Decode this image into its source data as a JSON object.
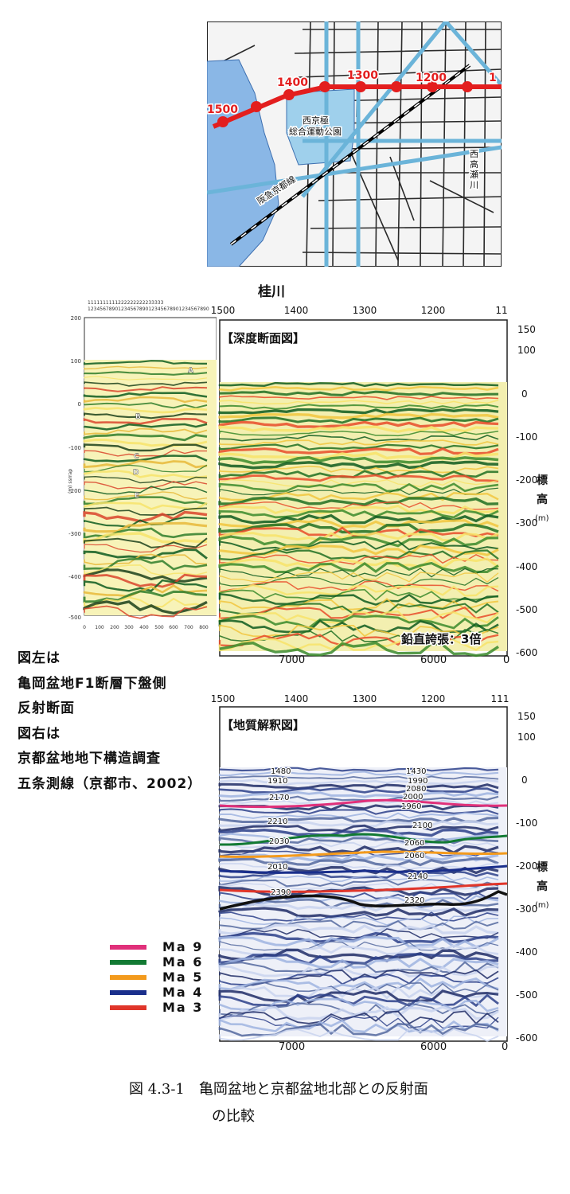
{
  "map": {
    "line_labels": [
      "1500",
      "1400",
      "1300",
      "1200",
      "1"
    ],
    "place_labels": {
      "park": [
        "西京極",
        "総合運動公園"
      ],
      "railway": "阪急京都線",
      "river": "西高瀬川"
    }
  },
  "seismic_left": {
    "top_tick_digits": "1234567890123456789012345678901234567890",
    "y_ticks": [
      "200",
      "100",
      "0",
      "-100",
      "-200",
      "-300",
      "-400",
      "-500"
    ],
    "x_ticks": [
      "0",
      "100",
      "200",
      "300",
      "400",
      "500",
      "600",
      "700",
      "800"
    ],
    "y_unit": "(m) ssrrap",
    "horizons": [
      "A",
      "B",
      "C",
      "D",
      "E"
    ]
  },
  "river_label": "桂川",
  "depth_section": {
    "title": "【深度断面図】",
    "top_ticks": [
      "1500",
      "1400",
      "1300",
      "1200",
      "11"
    ],
    "bottom_ticks": [
      "7000",
      "6000",
      "0"
    ],
    "right_ticks": [
      "150",
      "100",
      "0",
      "-100",
      "-200",
      "-300",
      "-400",
      "-500",
      "-600"
    ],
    "right_label": [
      "標",
      "高",
      "(m)"
    ],
    "note": "鉛直誇張：3倍"
  },
  "caption_left": [
    "図左は",
    "亀岡盆地F1断層下盤側",
    "反射断面",
    "図右は",
    "京都盆地地下構造調査",
    "五条測線（京都市、2002）"
  ],
  "geology_section": {
    "title": "【地質解釈図】",
    "top_ticks": [
      "1500",
      "1400",
      "1300",
      "1200",
      "111"
    ],
    "bottom_ticks": [
      "7000",
      "6000",
      "0"
    ],
    "right_ticks": [
      "150",
      "100",
      "0",
      "-100",
      "-200",
      "-300",
      "-400",
      "-500",
      "-600"
    ],
    "right_label": [
      "標",
      "高",
      "(m)"
    ],
    "labels_left": [
      "1480",
      "1910",
      "2170",
      "2210",
      "2030",
      "2010",
      "2390"
    ],
    "labels_right": [
      "1430",
      "1990",
      "2080",
      "2000",
      "1960",
      "2100",
      "2060",
      "2060",
      "2140",
      "2320"
    ]
  },
  "legend": [
    {
      "label": "Ma 9",
      "color": "#e0307a"
    },
    {
      "label": "Ma 6",
      "color": "#127a33"
    },
    {
      "label": "Ma 5",
      "color": "#f39a1c"
    },
    {
      "label": "Ma 4",
      "color": "#1a2f8c"
    },
    {
      "label": "Ma 3",
      "color": "#e0352a"
    }
  ],
  "figure_caption": {
    "line1": "図 4.3-1　亀岡盆地と京都盆地北部との反射面",
    "line2": "の比較"
  }
}
